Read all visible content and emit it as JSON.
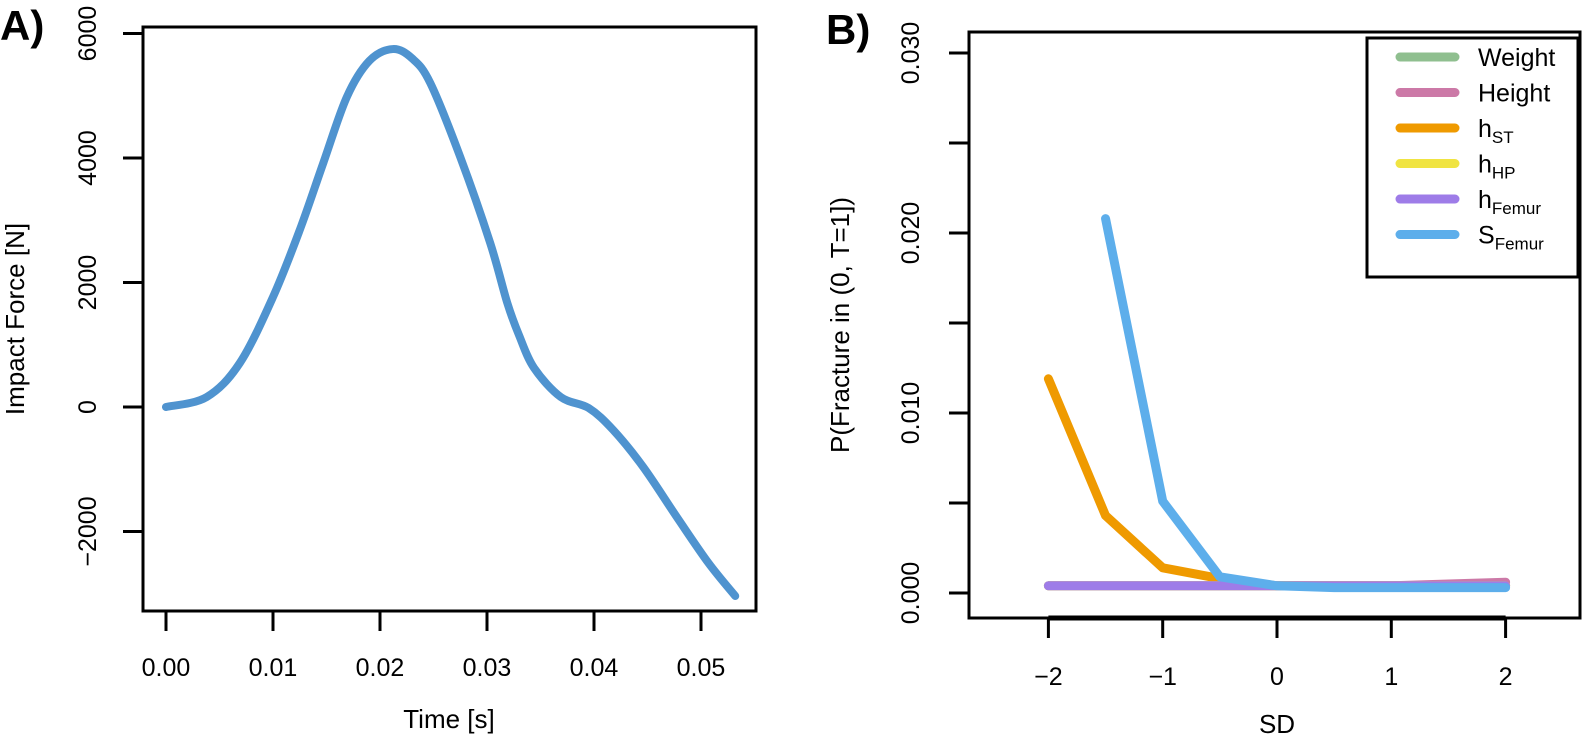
{
  "chart_data": [
    {
      "panel": "A)",
      "type": "line",
      "title": "",
      "xlabel": "Time [s]",
      "ylabel": "Impact Force [N]",
      "xlim": [
        -0.0023,
        0.0551
      ],
      "ylim": [
        -3300,
        6200
      ],
      "xticks": [
        0.0,
        0.01,
        0.02,
        0.03,
        0.04,
        0.05
      ],
      "xtick_labels": [
        "0.00",
        "0.01",
        "0.02",
        "0.03",
        "0.04",
        "0.05"
      ],
      "yticks": [
        -2000,
        0,
        2000,
        4000,
        6000
      ],
      "ytick_labels": [
        "-2000",
        "0",
        "2000",
        "4000",
        "6000"
      ],
      "grid": false,
      "color": "#4f93cf",
      "series": [
        {
          "name": "Impact Force",
          "x": [
            0.0,
            0.0038,
            0.0069,
            0.01,
            0.0125,
            0.0147,
            0.0169,
            0.019,
            0.0212,
            0.023,
            0.0247,
            0.0275,
            0.0303,
            0.0319,
            0.033,
            0.0344,
            0.0369,
            0.0395,
            0.0418,
            0.0446,
            0.0478,
            0.0507,
            0.0532
          ],
          "y": [
            0,
            160,
            707,
            1767,
            2843,
            3920,
            4980,
            5560,
            5750,
            5600,
            5205,
            4016,
            2634,
            1670,
            1150,
            626,
            160,
            -16,
            -370,
            -964,
            -1783,
            -2506,
            -3036
          ]
        }
      ]
    },
    {
      "panel": "B)",
      "type": "line",
      "title": "",
      "xlabel": "SD",
      "ylabel": "P(Fracture in (0, T=1])",
      "xlim": [
        -2.7,
        2.7
      ],
      "ylim": [
        -0.0012,
        0.0312
      ],
      "xticks": [
        -2,
        -1,
        0,
        1,
        2
      ],
      "xtick_labels": [
        "−2",
        "−1",
        "0",
        "1",
        "2"
      ],
      "yticks": [
        0.0,
        0.005,
        0.01,
        0.015,
        0.02,
        0.025,
        0.03
      ],
      "ytick_labels": [
        "0.000",
        "",
        "0.010",
        "",
        "0.020",
        "",
        "0.030"
      ],
      "grid": false,
      "legend_position": "top-right",
      "categories": [
        -2,
        -1.5,
        -1,
        -0.5,
        0,
        0.5,
        1,
        1.5,
        2
      ],
      "series": [
        {
          "name": "Weight",
          "label_main": "Weight",
          "label_sub": "",
          "color": "#8fbf8f",
          "values": [
            0.0004,
            0.0004,
            0.0004,
            0.0004,
            0.0004,
            0.0004,
            0.0004,
            0.0004,
            0.0004
          ]
        },
        {
          "name": "Height",
          "label_main": "Height",
          "label_sub": "",
          "color": "#cc79a7",
          "values": [
            0.0004,
            0.0004,
            0.0004,
            0.0004,
            0.0004,
            0.0004,
            0.0004,
            0.0005,
            0.0006
          ]
        },
        {
          "name": "h_ST",
          "label_main": "h",
          "label_sub": "ST",
          "color": "#ef9a00",
          "values": [
            0.0119,
            0.0043,
            0.0014,
            0.0008,
            0.0004,
            0.0004,
            0.0004,
            0.0004,
            0.0004
          ]
        },
        {
          "name": "h_HP",
          "label_main": "h",
          "label_sub": "HP",
          "color": "#f0e442",
          "values": [
            0.0004,
            0.0004,
            0.0004,
            0.0004,
            0.0004,
            0.0004,
            0.0004,
            0.0004,
            0.0004
          ]
        },
        {
          "name": "h_Femur",
          "label_main": "h",
          "label_sub": "Femur",
          "color": "#9e7ce8",
          "values": [
            0.0004,
            0.0004,
            0.0004,
            0.0004,
            0.0004,
            0.0004,
            0.0004,
            0.0004,
            0.0004
          ]
        },
        {
          "name": "S_Femur",
          "label_main": "S",
          "label_sub": "Femur",
          "color": "#5daeeb",
          "values": [
            null,
            0.0208,
            0.0051,
            0.0009,
            0.0004,
            0.0003,
            0.0003,
            0.0003,
            0.0003
          ]
        }
      ]
    }
  ]
}
